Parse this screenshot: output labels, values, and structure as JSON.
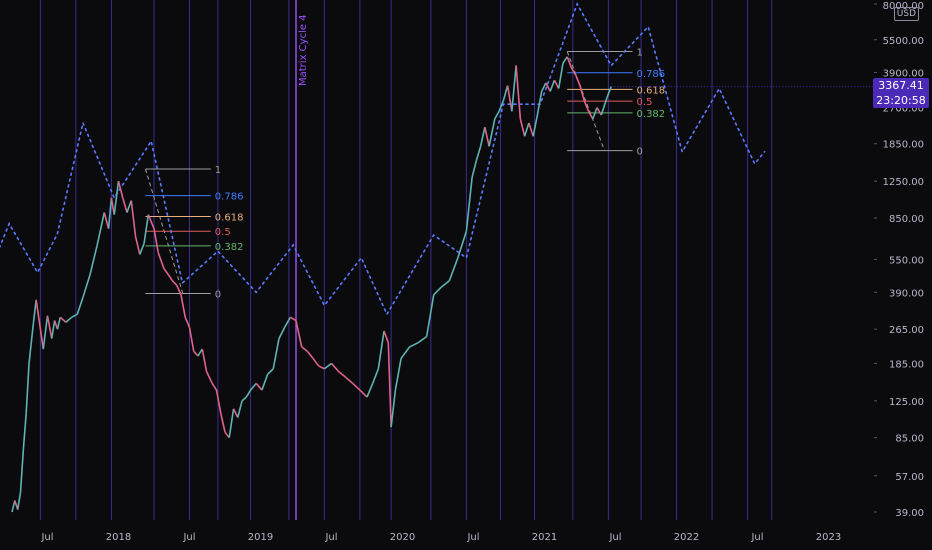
{
  "chart_data": {
    "type": "line",
    "scale": "log",
    "currency": "USD",
    "background": "#0b0b0e",
    "colors": {
      "price_up": "#5fb3b3",
      "price_down": "#e0648a",
      "cycle_line": "#5b7bff",
      "vertical_grid": "#3a2d8f",
      "cycle_label": "#a050ff",
      "axis_text": "#b7b7c9",
      "price_label_bg": "#4b2ab8"
    },
    "x_axis_labels": [
      "Jul",
      "2018",
      "Jul",
      "2019",
      "Jul",
      "2020",
      "Jul",
      "2021",
      "Jul",
      "2022",
      "Jul",
      "2023"
    ],
    "y_axis_labels": [
      "8000.00",
      "5500.00",
      "3900.00",
      "2700.00",
      "1850.00",
      "1250.00",
      "850.00",
      "550.00",
      "390.00",
      "265.00",
      "185.00",
      "125.00",
      "85.00",
      "57.00",
      "39.00"
    ],
    "ylim": [
      39,
      8000
    ],
    "cycle_label": "Matrix Cycle 4",
    "current_price": "3367.41",
    "countdown": "23:20:58",
    "price_series": [
      [
        0,
        39
      ],
      [
        0.02,
        44
      ],
      [
        0.04,
        40
      ],
      [
        0.06,
        48
      ],
      [
        0.08,
        75
      ],
      [
        0.1,
        110
      ],
      [
        0.12,
        185
      ],
      [
        0.15,
        280
      ],
      [
        0.17,
        360
      ],
      [
        0.2,
        265
      ],
      [
        0.22,
        215
      ],
      [
        0.25,
        305
      ],
      [
        0.28,
        240
      ],
      [
        0.3,
        290
      ],
      [
        0.32,
        265
      ],
      [
        0.34,
        300
      ],
      [
        0.38,
        285
      ],
      [
        0.42,
        300
      ],
      [
        0.46,
        310
      ],
      [
        0.5,
        370
      ],
      [
        0.55,
        470
      ],
      [
        0.6,
        640
      ],
      [
        0.65,
        900
      ],
      [
        0.68,
        760
      ],
      [
        0.7,
        1050
      ],
      [
        0.72,
        880
      ],
      [
        0.75,
        1250
      ],
      [
        0.78,
        1050
      ],
      [
        0.81,
        900
      ],
      [
        0.84,
        1020
      ],
      [
        0.87,
        700
      ],
      [
        0.9,
        580
      ],
      [
        0.93,
        650
      ],
      [
        0.96,
        880
      ],
      [
        1.0,
        760
      ],
      [
        1.03,
        590
      ],
      [
        1.07,
        500
      ],
      [
        1.1,
        470
      ],
      [
        1.13,
        440
      ],
      [
        1.16,
        420
      ],
      [
        1.19,
        380
      ],
      [
        1.22,
        300
      ],
      [
        1.25,
        270
      ],
      [
        1.28,
        210
      ],
      [
        1.31,
        200
      ],
      [
        1.34,
        215
      ],
      [
        1.37,
        170
      ],
      [
        1.41,
        150
      ],
      [
        1.44,
        140
      ],
      [
        1.47,
        110
      ],
      [
        1.5,
        90
      ],
      [
        1.53,
        85
      ],
      [
        1.56,
        115
      ],
      [
        1.59,
        105
      ],
      [
        1.62,
        125
      ],
      [
        1.65,
        130
      ],
      [
        1.68,
        140
      ],
      [
        1.72,
        150
      ],
      [
        1.76,
        140
      ],
      [
        1.8,
        165
      ],
      [
        1.84,
        175
      ],
      [
        1.88,
        240
      ],
      [
        1.92,
        270
      ],
      [
        1.96,
        300
      ],
      [
        2.0,
        290
      ],
      [
        2.04,
        220
      ],
      [
        2.08,
        210
      ],
      [
        2.12,
        195
      ],
      [
        2.16,
        180
      ],
      [
        2.2,
        175
      ],
      [
        2.25,
        185
      ],
      [
        2.3,
        170
      ],
      [
        2.35,
        160
      ],
      [
        2.4,
        150
      ],
      [
        2.45,
        140
      ],
      [
        2.5,
        130
      ],
      [
        2.54,
        150
      ],
      [
        2.58,
        175
      ],
      [
        2.62,
        260
      ],
      [
        2.65,
        230
      ],
      [
        2.67,
        95
      ],
      [
        2.7,
        140
      ],
      [
        2.74,
        195
      ],
      [
        2.8,
        220
      ],
      [
        2.86,
        230
      ],
      [
        2.92,
        245
      ],
      [
        2.97,
        380
      ],
      [
        3.02,
        410
      ],
      [
        3.08,
        440
      ],
      [
        3.14,
        560
      ],
      [
        3.2,
        740
      ],
      [
        3.24,
        1300
      ],
      [
        3.27,
        1550
      ],
      [
        3.3,
        1800
      ],
      [
        3.33,
        2200
      ],
      [
        3.36,
        1800
      ],
      [
        3.4,
        2400
      ],
      [
        3.43,
        2600
      ],
      [
        3.46,
        2900
      ],
      [
        3.49,
        3400
      ],
      [
        3.52,
        2600
      ],
      [
        3.55,
        4200
      ],
      [
        3.58,
        2400
      ],
      [
        3.61,
        2000
      ],
      [
        3.64,
        2300
      ],
      [
        3.67,
        2000
      ],
      [
        3.7,
        2500
      ],
      [
        3.73,
        3200
      ],
      [
        3.76,
        3500
      ],
      [
        3.79,
        3200
      ],
      [
        3.82,
        3600
      ],
      [
        3.85,
        3300
      ],
      [
        3.88,
        4300
      ],
      [
        3.91,
        4600
      ],
      [
        3.94,
        4100
      ],
      [
        3.97,
        3800
      ],
      [
        4.0,
        3400
      ],
      [
        4.03,
        2900
      ],
      [
        4.06,
        2600
      ],
      [
        4.09,
        2400
      ],
      [
        4.12,
        2700
      ],
      [
        4.15,
        2500
      ],
      [
        4.19,
        3000
      ],
      [
        4.22,
        3367
      ]
    ],
    "cycle_series": [
      [
        -0.5,
        150
      ],
      [
        -0.35,
        130
      ],
      [
        -0.22,
        385
      ],
      [
        -0.02,
        800
      ],
      [
        0.18,
        480
      ],
      [
        0.32,
        720
      ],
      [
        0.5,
        2300
      ],
      [
        0.72,
        1050
      ],
      [
        0.98,
        1900
      ],
      [
        1.2,
        430
      ],
      [
        1.45,
        600
      ],
      [
        1.72,
        390
      ],
      [
        1.98,
        640
      ],
      [
        2.2,
        340
      ],
      [
        2.46,
        560
      ],
      [
        2.64,
        310
      ],
      [
        2.97,
        710
      ],
      [
        3.2,
        560
      ],
      [
        3.46,
        2800
      ],
      [
        3.72,
        2800
      ],
      [
        3.98,
        8000
      ],
      [
        4.22,
        4200
      ],
      [
        4.48,
        6300
      ],
      [
        4.72,
        1700
      ],
      [
        4.98,
        3300
      ],
      [
        5.23,
        1500
      ],
      [
        5.3,
        1700
      ]
    ],
    "fib_levels": [
      {
        "name": "1",
        "color": "#9e9e9e"
      },
      {
        "name": "0.786",
        "color": "#3d7bff"
      },
      {
        "name": "0.618",
        "color": "#e8b07a"
      },
      {
        "name": "0.5",
        "color": "#e05c5c"
      },
      {
        "name": "0.382",
        "color": "#63b56a"
      },
      {
        "name": "0",
        "color": "#9e9e9e"
      }
    ],
    "fib_retracements": [
      {
        "x_start": 0.94,
        "x_end": 1.4,
        "high": 1420,
        "low": 385,
        "label_name": "0.618"
      },
      {
        "x_start": 3.91,
        "x_end": 4.37,
        "high": 4860,
        "low": 1720,
        "label_name": "0.618"
      }
    ],
    "vertical_lines": [
      -0.2,
      0.2,
      0.45,
      0.7,
      1.0,
      1.25,
      1.45,
      1.68,
      1.95,
      2.2,
      2.45,
      2.67,
      2.95,
      3.2,
      3.44,
      3.68,
      3.95,
      4.2,
      4.43,
      4.68,
      4.93,
      5.18,
      5.35
    ],
    "cycle_marker_x": 2.0
  },
  "axis": {
    "currency_badge": "USD",
    "current_price": "3367.41",
    "countdown": "23:20:58"
  }
}
